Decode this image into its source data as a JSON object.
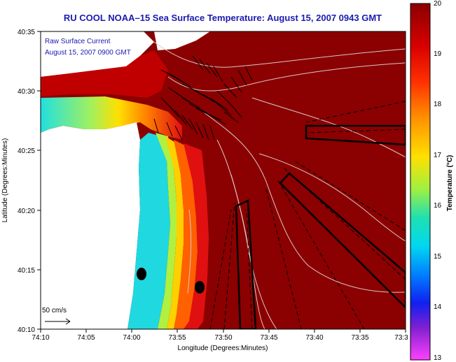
{
  "title": "RU COOL  NOAA–15  Sea Surface Temperature:  August 15, 2007 0943 GMT",
  "inset": {
    "line1": "Raw Surface Current",
    "line2": "August 15, 2007 0900 GMT"
  },
  "scale_label": "50 cm/s",
  "axes": {
    "xlabel": "Longitude (Degrees:Minutes)",
    "ylabel": "Latitude (Degrees:Minutes)",
    "xticks": [
      "74:10",
      "74:05",
      "74:00",
      "73:55",
      "73:50",
      "73:45",
      "73:40",
      "73:35",
      "73:3"
    ],
    "yticks": [
      "40:35",
      "40:30",
      "40:25",
      "40:20",
      "40:15",
      "40:10"
    ]
  },
  "colorbar": {
    "label": "Temperature (°C)",
    "ticks": [
      "20",
      "19",
      "18",
      "17",
      "16",
      "15",
      "14",
      "13"
    ],
    "min": 13,
    "max": 20
  },
  "colors": {
    "title": "#1b1bb0",
    "warm_water": "#8b0000",
    "land": "#ffffff"
  }
}
